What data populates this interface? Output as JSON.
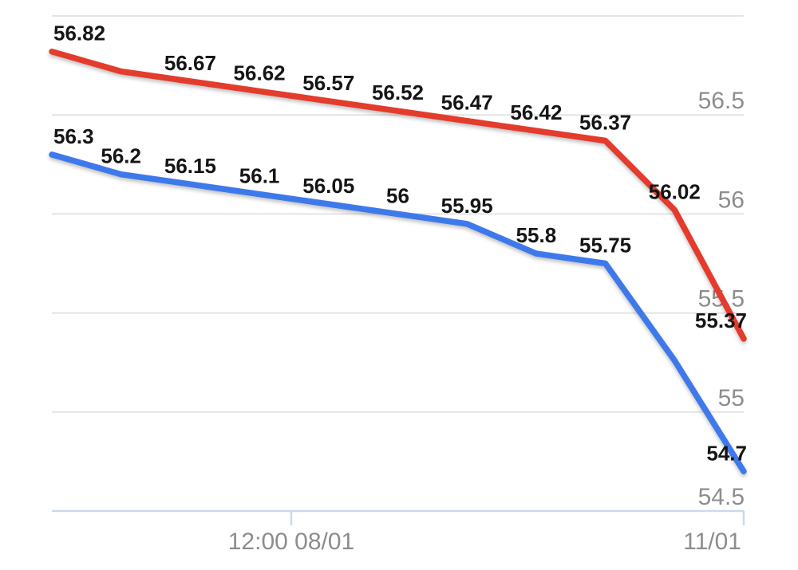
{
  "chart_data": {
    "type": "line",
    "title": "",
    "xlabel": "",
    "ylabel": "",
    "grid": true,
    "legend": "none",
    "ylim": [
      54.5,
      57
    ],
    "y_axis": {
      "min": 54.5,
      "max": 57,
      "step": 0.5,
      "side": "right-inside",
      "gridlines": [
        {
          "value": 57,
          "label": ""
        },
        {
          "value": 56.5,
          "label": "56.5"
        },
        {
          "value": 56,
          "label": "56"
        },
        {
          "value": 55.5,
          "label": "55.5"
        },
        {
          "value": 55,
          "label": "55"
        },
        {
          "value": 54.5,
          "label": "54.5"
        }
      ]
    },
    "x_axis": {
      "ticks": [
        {
          "label": "12:00 08/01",
          "pos": 0.346,
          "align": "center"
        },
        {
          "label": "11/01",
          "pos": 1.0,
          "align": "end"
        }
      ]
    },
    "series": [
      {
        "name": "upper-red",
        "color": "#e43b2c",
        "values": [
          56.82,
          56.72,
          56.67,
          56.62,
          56.57,
          56.52,
          56.47,
          56.42,
          56.37,
          56.02,
          55.37
        ],
        "point_labels": [
          "56.82",
          null,
          "56.67",
          "56.62",
          "56.57",
          "56.52",
          "56.47",
          "56.42",
          "56.37",
          "56.02",
          "55.37"
        ]
      },
      {
        "name": "lower-blue",
        "color": "#3e79ec",
        "values": [
          56.3,
          56.2,
          56.15,
          56.1,
          56.05,
          56.0,
          55.95,
          55.8,
          55.75,
          55.26,
          54.7
        ],
        "point_labels": [
          "56.3",
          "56.2",
          "56.15",
          "56.1",
          "56.05",
          "56",
          "55.95",
          "55.8",
          "55.75",
          null,
          "54.7"
        ]
      }
    ],
    "style": {
      "grid_color": "#e4e4e4",
      "axis_color": "#ccd9ea",
      "axis_text_color": "#8d8d8d",
      "point_label_color": "#151515",
      "background": "#ffffff"
    }
  }
}
